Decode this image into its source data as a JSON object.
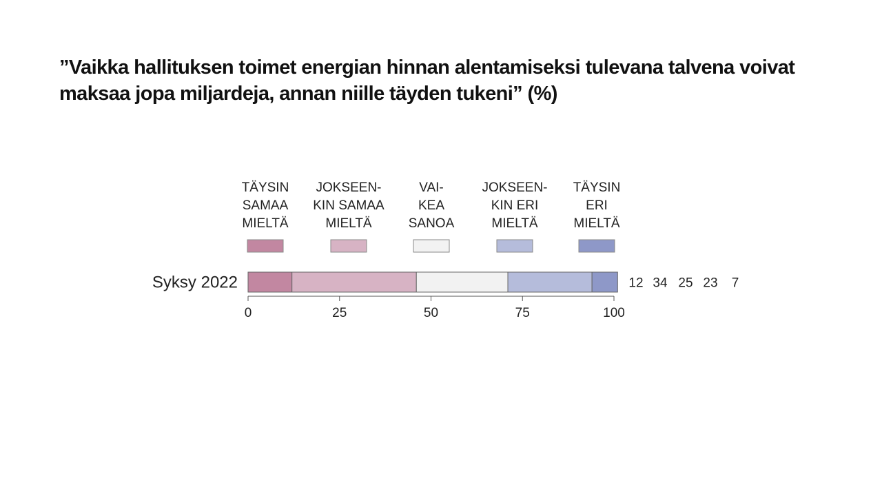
{
  "title": "”Vaikka hallituksen toimet energian hinnan alentamiseksi tulevana talvena voivat\nmaksaa jopa miljardeja, annan niille täyden tukeni” (%)",
  "chart_data": {
    "type": "bar",
    "orientation": "horizontal",
    "stacked": true,
    "categories": [
      "Syksy 2022"
    ],
    "series": [
      {
        "name": "TÄYSIN SAMAA MIELTÄ",
        "values": [
          12
        ],
        "color": "#c287a1"
      },
      {
        "name": "JOKSEEN-KIN SAMAA MIELTÄ",
        "values": [
          34
        ],
        "color": "#d7b3c4"
      },
      {
        "name": "VAI-KEA SANOA",
        "values": [
          25
        ],
        "color": "#f2f2f2"
      },
      {
        "name": "JOKSEEN-KIN ERI MIELTÄ",
        "values": [
          23
        ],
        "color": "#b5bcdb"
      },
      {
        "name": "TÄYSIN ERI MIELTÄ",
        "values": [
          7
        ],
        "color": "#8e98c8"
      }
    ],
    "legend_lines": [
      [
        "TÄYSIN",
        "SAMAA",
        "MIELTÄ"
      ],
      [
        "JOKSEEN-",
        "KIN SAMAA",
        "MIELTÄ"
      ],
      [
        "VAI-",
        "KEA",
        "SANOA"
      ],
      [
        "JOKSEEN-",
        "KIN ERI",
        "MIELTÄ"
      ],
      [
        "TÄYSIN",
        "ERI",
        "MIELTÄ"
      ]
    ],
    "value_labels": [
      "12",
      "34",
      "25",
      "23",
      "7"
    ],
    "xlim": [
      0,
      100
    ],
    "xticks": [
      0,
      25,
      50,
      75,
      100
    ],
    "legend_position": "top",
    "grid": false
  }
}
